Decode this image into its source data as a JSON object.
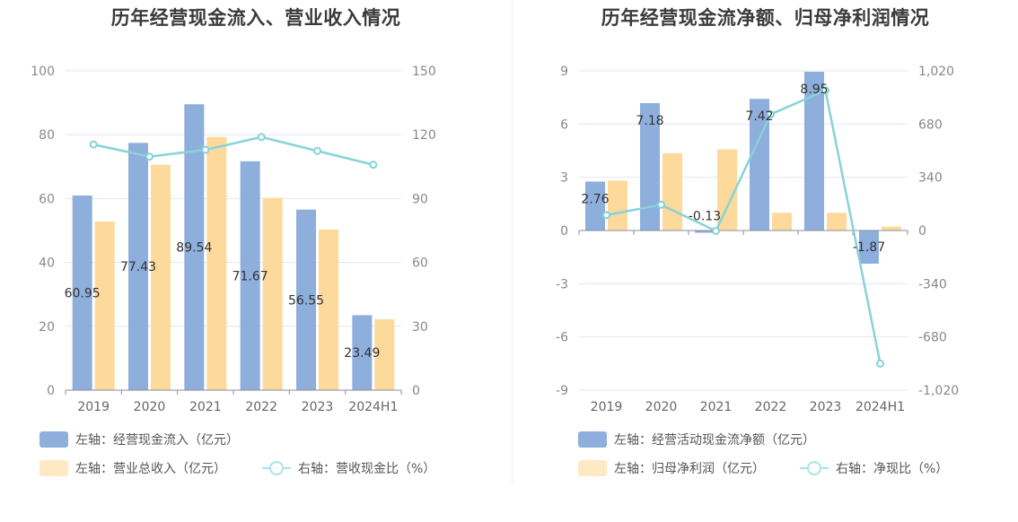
{
  "chart_data": [
    {
      "type": "bar",
      "title": "历年经营现金流入、营业收入情况",
      "categories": [
        "2019",
        "2020",
        "2021",
        "2022",
        "2023",
        "2024H1"
      ],
      "y_left": {
        "ticks": [
          "0",
          "20",
          "40",
          "60",
          "80",
          "100"
        ],
        "min": 0,
        "max": 100
      },
      "y_right": {
        "ticks": [
          "0",
          "30",
          "60",
          "90",
          "120",
          "150"
        ],
        "min": 0,
        "max": 150
      },
      "series": [
        {
          "name": "左轴：经营现金流入（亿元）",
          "kind": "bar",
          "axis": "left",
          "color": "#8eaedc",
          "values": [
            60.95,
            77.43,
            89.54,
            71.67,
            56.55,
            23.49
          ],
          "labels": [
            "60.95",
            "77.43",
            "89.54",
            "71.67",
            "56.55",
            "23.49"
          ]
        },
        {
          "name": "左轴：营业总收入（亿元）",
          "kind": "bar",
          "axis": "left",
          "color": "#fdd99b",
          "values": [
            52.8,
            70.6,
            79.3,
            60.2,
            50.3,
            22.2
          ]
        },
        {
          "name": "右轴：营收现金比（%）",
          "kind": "line",
          "axis": "right",
          "color": "#86d3d8",
          "values": [
            115.4,
            109.7,
            112.9,
            118.9,
            112.4,
            105.9
          ]
        }
      ],
      "grid": true,
      "legend_position": "bottom"
    },
    {
      "type": "bar",
      "title": "历年经营现金流净额、归母净利润情况",
      "categories": [
        "2019",
        "2020",
        "2021",
        "2022",
        "2023",
        "2024H1"
      ],
      "y_left": {
        "ticks": [
          "-9",
          "-6",
          "-3",
          "0",
          "3",
          "6",
          "9"
        ],
        "min": -9,
        "max": 9
      },
      "y_right": {
        "ticks": [
          "-1,020",
          "-680",
          "-340",
          "0",
          "340",
          "680",
          "1,020"
        ],
        "min": -1020,
        "max": 1020
      },
      "series": [
        {
          "name": "左轴：经营活动现金流净额（亿元）",
          "kind": "bar",
          "axis": "left",
          "color": "#8eaedc",
          "values": [
            2.76,
            7.18,
            -0.13,
            7.42,
            8.95,
            -1.87
          ],
          "labels": [
            "2.76",
            "7.18",
            "-0.13",
            "7.42",
            "8.95",
            "-1.87"
          ]
        },
        {
          "name": "左轴：归母净利润（亿元）",
          "kind": "bar",
          "axis": "left",
          "color": "#fdd99b",
          "values": [
            2.81,
            4.36,
            4.57,
            1.0,
            1.0,
            0.22
          ]
        },
        {
          "name": "右轴：净现比（%）",
          "kind": "line",
          "axis": "right",
          "color": "#86d3d8",
          "values": [
            98.2,
            164.7,
            -2.8,
            742.0,
            895.0,
            -850.0
          ]
        }
      ],
      "grid": true,
      "legend_position": "bottom"
    }
  ]
}
